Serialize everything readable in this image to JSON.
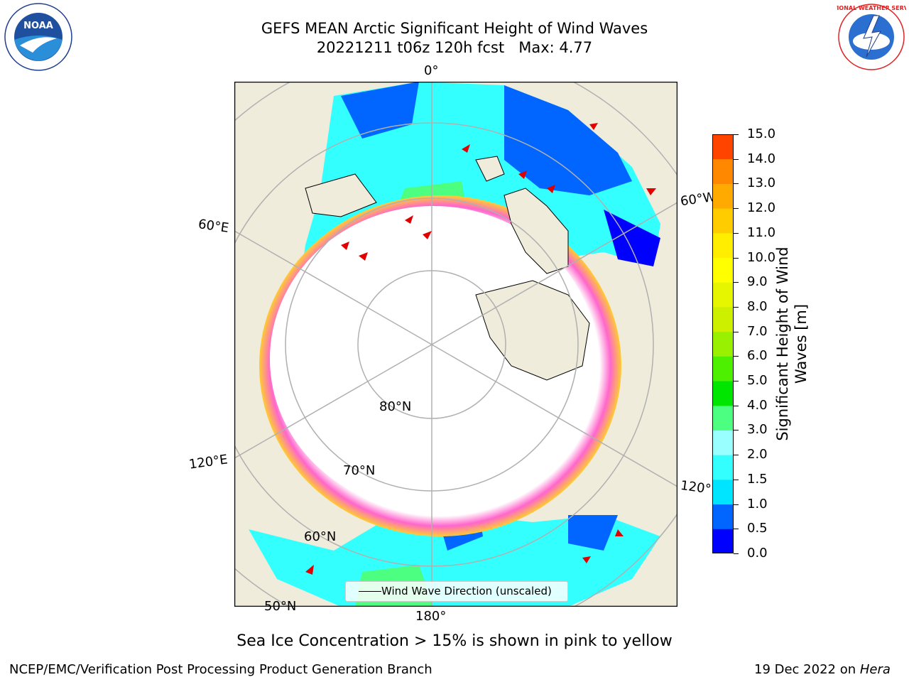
{
  "title": {
    "line1": "GEFS MEAN Arctic Significant Height of Wind Waves",
    "line2": "20221211 t06z 120h fcst   Max: 4.77"
  },
  "logos": {
    "left": "NOAA",
    "left_ring": "NATIONAL OCEANIC AND ATMOSPHERIC ADMINISTRATION • U.S. DEPARTMENT OF COMMERCE",
    "right_ring": "NATIONAL WEATHER SERVICE"
  },
  "map": {
    "longitude_labels": [
      "0°",
      "60°W",
      "120°W",
      "180°",
      "120°E",
      "60°E"
    ],
    "latitude_labels": [
      "80°N",
      "70°N",
      "60°N",
      "50°N"
    ],
    "legend_label": "Wind Wave Direction (unscaled)",
    "colors": {
      "land": "#efecdc",
      "ice_free_ocean": "#ffffff",
      "grid": "#b0b0b0",
      "arrow": "#e00000"
    }
  },
  "colorbar": {
    "label": "Significant Height of Wind Waves [m]",
    "ticks": [
      "15.0",
      "14.0",
      "13.0",
      "12.0",
      "11.0",
      "10.0",
      "9.0",
      "8.0",
      "7.0",
      "6.0",
      "5.0",
      "4.0",
      "3.0",
      "2.0",
      "1.5",
      "1.0",
      "0.5",
      "0.0"
    ],
    "colors": [
      "#0000ff",
      "#0066ff",
      "#00e5ff",
      "#33ffff",
      "#99ffff",
      "#4dff80",
      "#00e600",
      "#4df000",
      "#99f000",
      "#ccf000",
      "#e6f500",
      "#ffff00",
      "#ffee00",
      "#ffcc00",
      "#ffaa00",
      "#ff8800",
      "#ff4400",
      "#ff0000"
    ]
  },
  "subtitle": "Sea Ice Concentration > 15% is shown in pink to yellow",
  "footer": {
    "left": "NCEP/EMC/Verification Post Processing Product Generation Branch",
    "right_date": "19 Dec 2022 on ",
    "right_host": "Hera"
  }
}
